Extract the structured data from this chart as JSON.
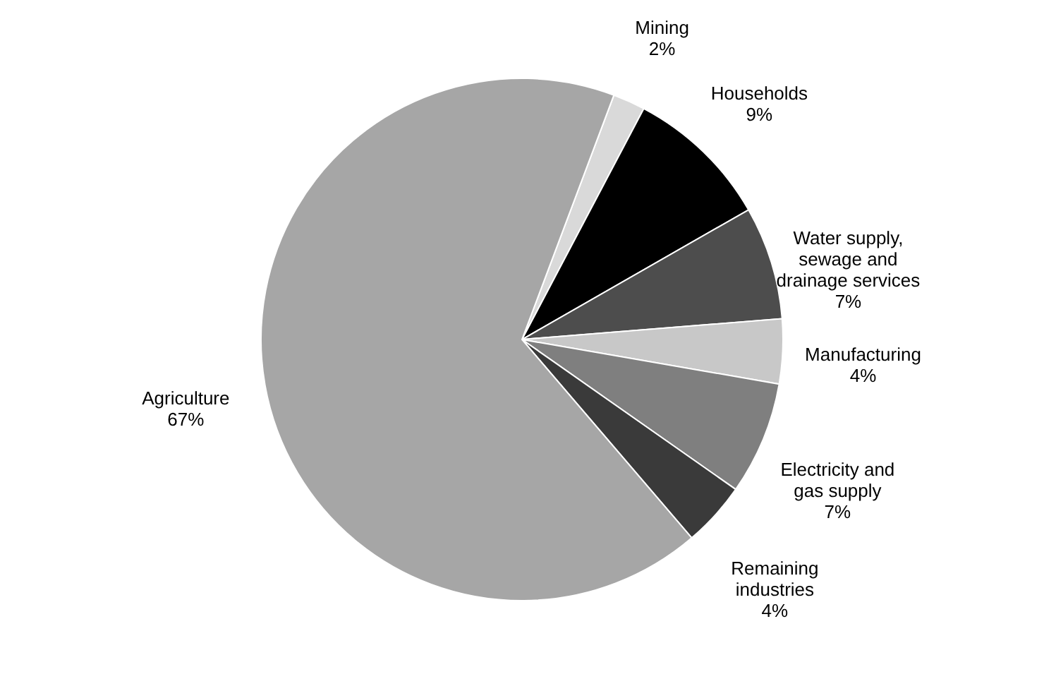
{
  "chart_data": {
    "type": "pie",
    "categories": [
      "Mining",
      "Households",
      "Water supply, sewage and drainage services",
      "Manufacturing",
      "Electricity and gas supply",
      "Remaining industries",
      "Agriculture"
    ],
    "values": [
      2,
      9,
      7,
      4,
      7,
      4,
      67
    ],
    "colors": [
      "#d9d9d9",
      "#000000",
      "#4d4d4d",
      "#c8c8c8",
      "#7f7f7f",
      "#3a3a3a",
      "#a6a6a6"
    ],
    "value_labels": [
      "2%",
      "9%",
      "7%",
      "4%",
      "7%",
      "4%",
      "67%"
    ]
  }
}
